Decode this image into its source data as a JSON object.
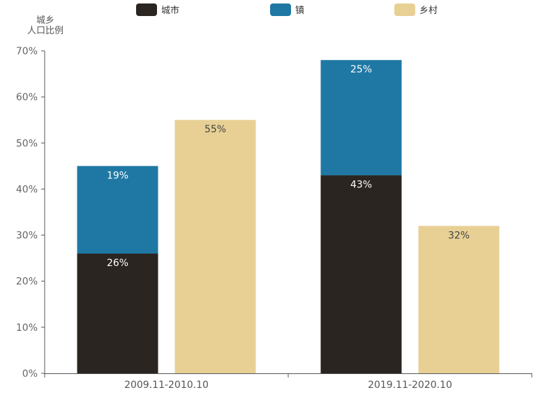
{
  "chart_data": {
    "type": "bar",
    "categories": [
      "2009.11-2010.10",
      "2019.11-2020.10"
    ],
    "series": [
      {
        "name": "城市",
        "stack": "urban",
        "values": [
          26,
          43
        ],
        "labels": [
          "26%",
          "43%"
        ],
        "color": "#2a2520"
      },
      {
        "name": "镇",
        "stack": "urban",
        "values": [
          19,
          25
        ],
        "labels": [
          "19%",
          "25%"
        ],
        "color": "#1f78a4"
      },
      {
        "name": "乡村",
        "stack": "rural",
        "values": [
          55,
          32
        ],
        "labels": [
          "55%",
          "32%"
        ],
        "color": "#e8d095"
      }
    ],
    "ylabel_lines": [
      "城乡",
      "人口比例"
    ],
    "ylim": [
      0,
      70
    ],
    "y_ticks": [
      "0%",
      "10%",
      "20%",
      "30%",
      "40%",
      "50%",
      "60%",
      "70%"
    ],
    "grid": false,
    "legend_position": "top"
  }
}
